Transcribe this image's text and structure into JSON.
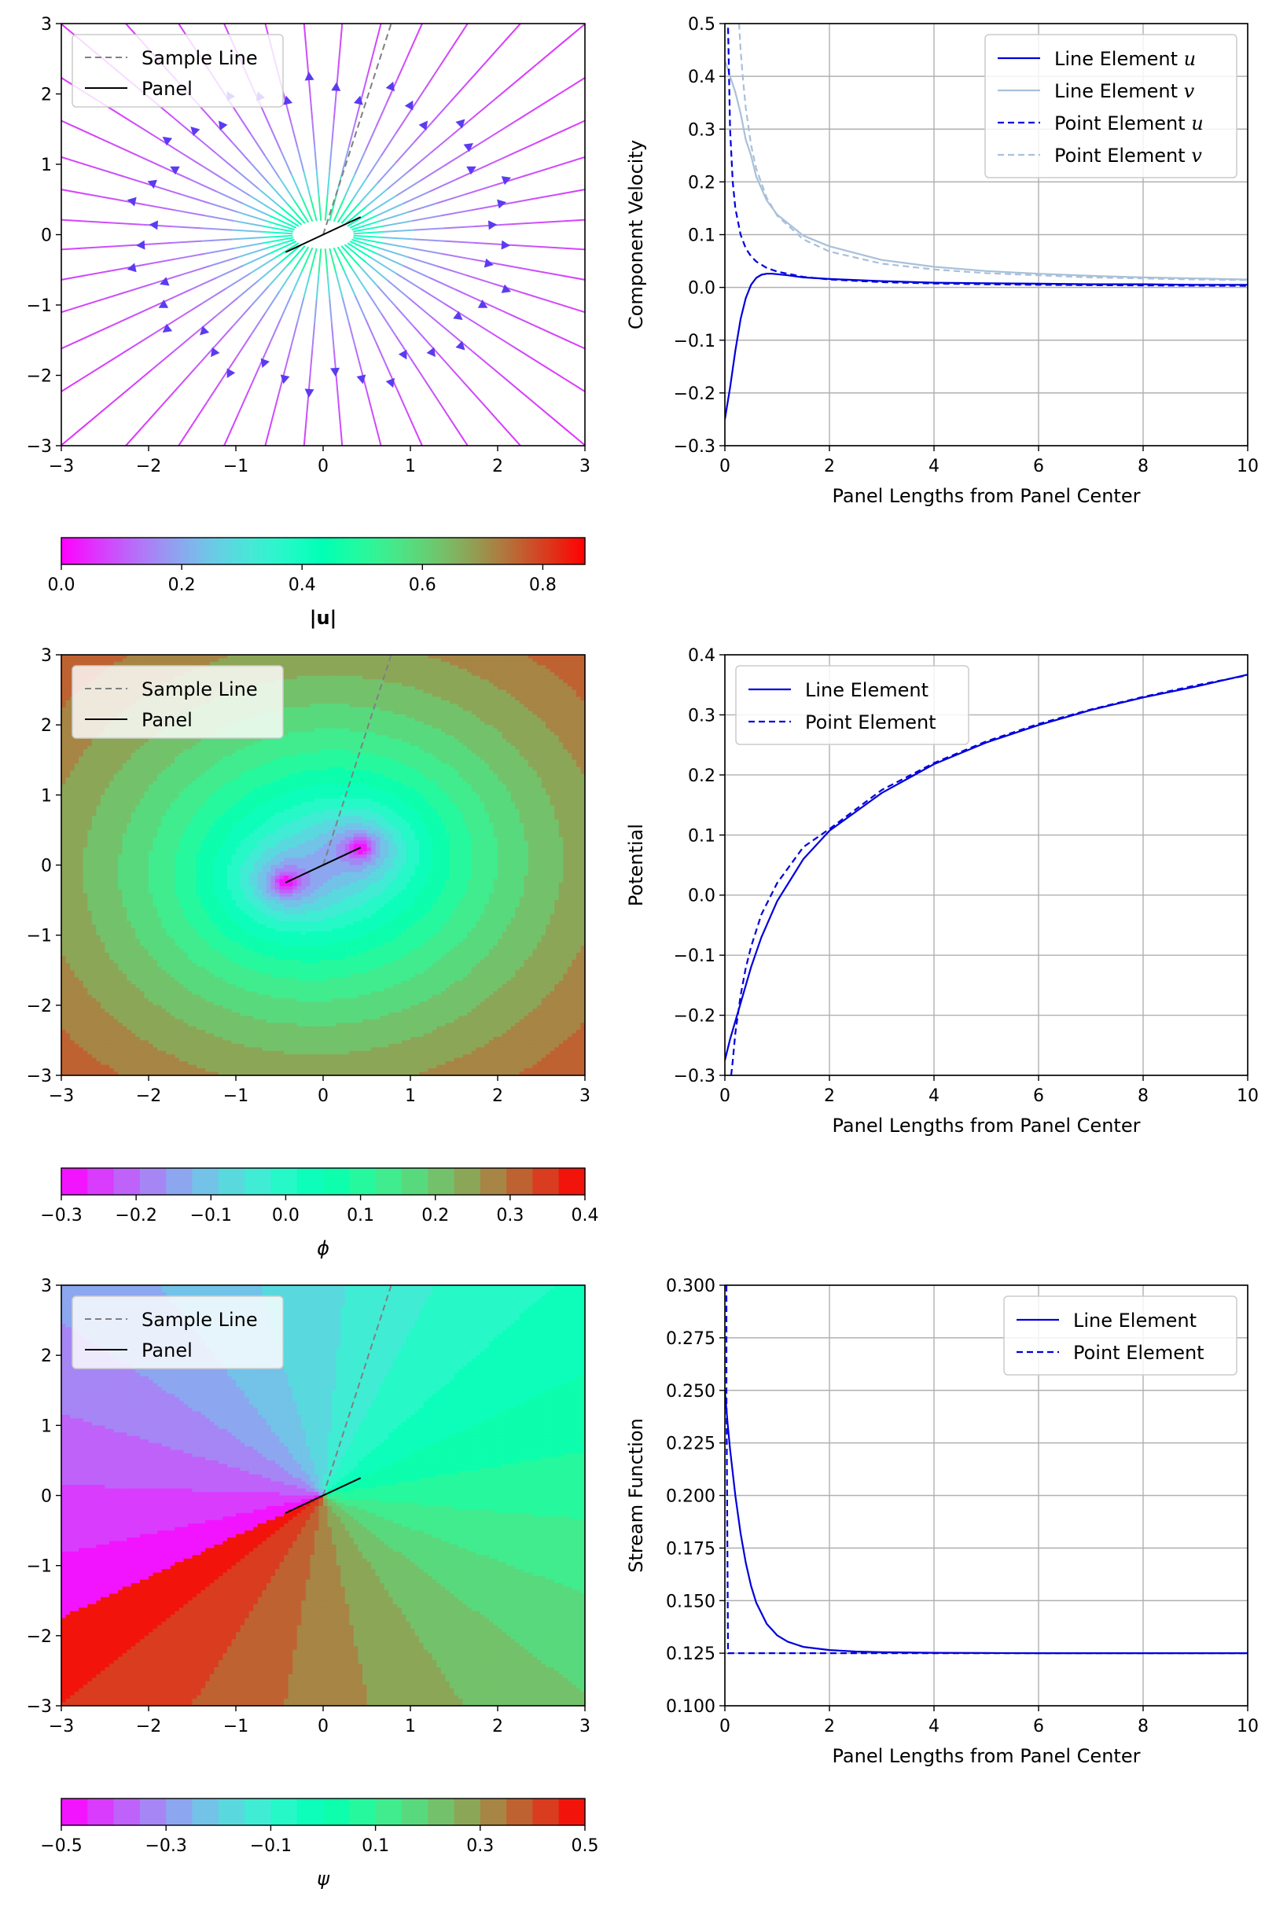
{
  "chart_data": [
    {
      "id": "velocity-field",
      "type": "streamplot",
      "xlim": [
        -3,
        3
      ],
      "ylim": [
        -3,
        3
      ],
      "xticks": [
        -3,
        -2,
        -1,
        0,
        1,
        2,
        3
      ],
      "yticks": [
        -3,
        -2,
        -1,
        0,
        1,
        2,
        3
      ],
      "legend": {
        "position": "upper-left",
        "entries": [
          "Sample Line",
          "Panel"
        ]
      },
      "sample_line": {
        "x": [
          0,
          0.78
        ],
        "y": [
          0,
          3
        ]
      },
      "panel": {
        "x": [
          -0.43,
          0.43
        ],
        "y": [
          -0.25,
          0.25
        ]
      },
      "colorbar": {
        "label": "|u|",
        "range": [
          0,
          0.87
        ],
        "ticks": [
          0.0,
          0.2,
          0.4,
          0.6,
          0.8
        ],
        "tick_labels": [
          "0.0",
          "0.2",
          "0.4",
          "0.6",
          "0.8"
        ],
        "colormap": "rainbow",
        "continuous": true
      }
    },
    {
      "id": "velocity-profile",
      "type": "line",
      "xlabel": "Panel Lengths from Panel Center",
      "ylabel": "Component Velocity",
      "xlim": [
        0,
        10
      ],
      "ylim": [
        -0.3,
        0.5
      ],
      "xticks": [
        0,
        2,
        4,
        6,
        8,
        10
      ],
      "yticks": [
        -0.3,
        -0.2,
        -0.1,
        0.0,
        0.1,
        0.2,
        0.3,
        0.4,
        0.5
      ],
      "ytick_labels": [
        "−0.3",
        "−0.2",
        "−0.1",
        "0.0",
        "0.1",
        "0.2",
        "0.3",
        "0.4",
        "0.5"
      ],
      "grid": true,
      "legend": {
        "position": "upper-right"
      },
      "series": [
        {
          "name": "Line Element u",
          "label_main": "Line Element ",
          "label_var": "u",
          "color": "#0000dd",
          "dash": "solid",
          "x": [
            0.0,
            0.1,
            0.2,
            0.3,
            0.4,
            0.5,
            0.6,
            0.7,
            0.8,
            0.9,
            1.0,
            1.2,
            1.5,
            2,
            3,
            4,
            5,
            6,
            7,
            8,
            9,
            10
          ],
          "y": [
            -0.25,
            -0.19,
            -0.12,
            -0.06,
            -0.02,
            0.005,
            0.018,
            0.024,
            0.026,
            0.026,
            0.025,
            0.023,
            0.019,
            0.016,
            0.012,
            0.009,
            0.008,
            0.007,
            0.006,
            0.006,
            0.005,
            0.005
          ]
        },
        {
          "name": "Line Element v",
          "label_main": "Line Element ",
          "label_var": "v",
          "color": "#a9c0d9",
          "dash": "solid",
          "x": [
            0.0,
            0.1,
            0.2,
            0.3,
            0.4,
            0.5,
            0.6,
            0.8,
            1.0,
            1.5,
            2,
            3,
            4,
            5,
            6,
            7,
            8,
            9,
            10
          ],
          "y": [
            0.43,
            0.4,
            0.37,
            0.33,
            0.28,
            0.25,
            0.21,
            0.165,
            0.138,
            0.098,
            0.078,
            0.052,
            0.039,
            0.031,
            0.026,
            0.022,
            0.019,
            0.017,
            0.015
          ]
        },
        {
          "name": "Point Element u",
          "label_main": "Point Element ",
          "label_var": "u",
          "color": "#0000dd",
          "dash": "dashed",
          "x": [
            0.05,
            0.08,
            0.1,
            0.15,
            0.2,
            0.3,
            0.4,
            0.5,
            0.6,
            0.8,
            1.0,
            1.5,
            2,
            3,
            4,
            5,
            6,
            7,
            8,
            9,
            10
          ],
          "y": [
            0.55,
            0.4,
            0.3,
            0.2,
            0.15,
            0.1,
            0.074,
            0.059,
            0.049,
            0.037,
            0.03,
            0.02,
            0.015,
            0.01,
            0.0074,
            0.0059,
            0.0049,
            0.0042,
            0.0037,
            0.0033,
            0.003
          ]
        },
        {
          "name": "Point Element v",
          "label_main": "Point Element ",
          "label_var": "v",
          "color": "#a9c0d9",
          "dash": "dashed",
          "x": [
            0.26,
            0.3,
            0.35,
            0.4,
            0.5,
            0.6,
            0.8,
            1.0,
            1.5,
            2,
            3,
            4,
            5,
            6,
            7,
            8,
            9,
            10
          ],
          "y": [
            0.52,
            0.45,
            0.39,
            0.34,
            0.27,
            0.225,
            0.17,
            0.136,
            0.091,
            0.068,
            0.045,
            0.034,
            0.027,
            0.023,
            0.019,
            0.017,
            0.015,
            0.014
          ]
        }
      ]
    },
    {
      "id": "potential-field",
      "type": "contourf",
      "xlim": [
        -3,
        3
      ],
      "ylim": [
        -3,
        3
      ],
      "xticks": [
        -3,
        -2,
        -1,
        0,
        1,
        2,
        3
      ],
      "yticks": [
        -3,
        -2,
        -1,
        0,
        1,
        2,
        3
      ],
      "legend": {
        "position": "upper-left",
        "entries": [
          "Sample Line",
          "Panel"
        ]
      },
      "sample_line": {
        "x": [
          0,
          0.78
        ],
        "y": [
          0,
          3
        ]
      },
      "panel": {
        "x": [
          -0.43,
          0.43
        ],
        "y": [
          -0.25,
          0.25
        ]
      },
      "colorbar": {
        "label": "ϕ",
        "range": [
          -0.3,
          0.4
        ],
        "levels": 20,
        "ticks": [
          -0.3,
          -0.2,
          -0.1,
          0.0,
          0.1,
          0.2,
          0.3,
          0.4
        ],
        "tick_labels": [
          "−0.3",
          "−0.2",
          "−0.1",
          "0.0",
          "0.1",
          "0.2",
          "0.3",
          "0.4"
        ],
        "colormap": "rainbow"
      }
    },
    {
      "id": "potential-profile",
      "type": "line",
      "xlabel": "Panel Lengths from Panel Center",
      "ylabel": "Potential",
      "xlim": [
        0,
        10
      ],
      "ylim": [
        -0.3,
        0.4
      ],
      "xticks": [
        0,
        2,
        4,
        6,
        8,
        10
      ],
      "yticks": [
        -0.3,
        -0.2,
        -0.1,
        0.0,
        0.1,
        0.2,
        0.3,
        0.4
      ],
      "ytick_labels": [
        "−0.3",
        "−0.2",
        "−0.1",
        "0.0",
        "0.1",
        "0.2",
        "0.3",
        "0.4"
      ],
      "grid": true,
      "legend": {
        "position": "upper-left"
      },
      "series": [
        {
          "name": "Line Element",
          "label_main": "Line Element",
          "label_var": "",
          "color": "#0000dd",
          "dash": "solid",
          "x": [
            0.0,
            0.1,
            0.2,
            0.3,
            0.5,
            0.7,
            1.0,
            1.5,
            2,
            3,
            4,
            5,
            6,
            7,
            8,
            9,
            10
          ],
          "y": [
            -0.275,
            -0.24,
            -0.21,
            -0.18,
            -0.12,
            -0.07,
            -0.01,
            0.06,
            0.107,
            0.17,
            0.218,
            0.254,
            0.283,
            0.308,
            0.329,
            0.347,
            0.367
          ]
        },
        {
          "name": "Point Element",
          "label_main": "Point Element",
          "label_var": "",
          "color": "#0000dd",
          "dash": "dashed",
          "x": [
            0.12,
            0.15,
            0.2,
            0.3,
            0.4,
            0.5,
            0.7,
            1.0,
            1.5,
            2,
            3,
            4,
            5,
            6,
            7,
            8,
            9,
            10
          ],
          "y": [
            -0.3,
            -0.276,
            -0.23,
            -0.167,
            -0.121,
            -0.086,
            -0.032,
            0.02,
            0.08,
            0.11,
            0.175,
            0.22,
            0.256,
            0.285,
            0.309,
            0.33,
            0.349,
            0.366
          ]
        }
      ]
    },
    {
      "id": "stream-function-field",
      "type": "contourf",
      "xlim": [
        -3,
        3
      ],
      "ylim": [
        -3,
        3
      ],
      "xticks": [
        -3,
        -2,
        -1,
        0,
        1,
        2,
        3
      ],
      "yticks": [
        -3,
        -2,
        -1,
        0,
        1,
        2,
        3
      ],
      "legend": {
        "position": "upper-left",
        "entries": [
          "Sample Line",
          "Panel"
        ]
      },
      "sample_line": {
        "x": [
          0,
          0.78
        ],
        "y": [
          0,
          3
        ]
      },
      "panel": {
        "x": [
          -0.43,
          0.43
        ],
        "y": [
          -0.25,
          0.25
        ]
      },
      "colorbar": {
        "label": "ψ",
        "range": [
          -0.5,
          0.5
        ],
        "levels": 20,
        "ticks": [
          -0.5,
          -0.3,
          -0.1,
          0.1,
          0.3,
          0.5
        ],
        "tick_labels": [
          "−0.5",
          "−0.3",
          "−0.1",
          "0.1",
          "0.3",
          "0.5"
        ],
        "colormap": "rainbow"
      }
    },
    {
      "id": "stream-function-profile",
      "type": "line",
      "xlabel": "Panel Lengths from Panel Center",
      "ylabel": "Stream Function",
      "xlim": [
        0,
        10
      ],
      "ylim": [
        0.1,
        0.3
      ],
      "xticks": [
        0,
        2,
        4,
        6,
        8,
        10
      ],
      "yticks": [
        0.1,
        0.125,
        0.15,
        0.175,
        0.2,
        0.225,
        0.25,
        0.275,
        0.3
      ],
      "ytick_labels": [
        "0.100",
        "0.125",
        "0.150",
        "0.175",
        "0.200",
        "0.225",
        "0.250",
        "0.275",
        "0.300"
      ],
      "grid": true,
      "legend": {
        "position": "upper-right"
      },
      "series": [
        {
          "name": "Line Element",
          "label_main": "Line Element",
          "label_var": "",
          "color": "#0000dd",
          "dash": "solid",
          "x": [
            0.0,
            0.05,
            0.1,
            0.2,
            0.3,
            0.4,
            0.5,
            0.6,
            0.8,
            1.0,
            1.2,
            1.5,
            2,
            2.5,
            3,
            4,
            5,
            6,
            7,
            8,
            9,
            10
          ],
          "y": [
            0.25,
            0.235,
            0.222,
            0.2,
            0.182,
            0.168,
            0.157,
            0.149,
            0.139,
            0.1335,
            0.1305,
            0.128,
            0.1265,
            0.1258,
            0.1255,
            0.1252,
            0.1251,
            0.125,
            0.125,
            0.125,
            0.125,
            0.125
          ]
        },
        {
          "name": "Point Element",
          "label_main": "Point Element",
          "label_var": "",
          "color": "#0000dd",
          "dash": "dashed",
          "x": [
            0.03,
            0.03,
            0.06,
            10
          ],
          "y": [
            0.3,
            0.25,
            0.125,
            0.125
          ]
        }
      ]
    }
  ]
}
